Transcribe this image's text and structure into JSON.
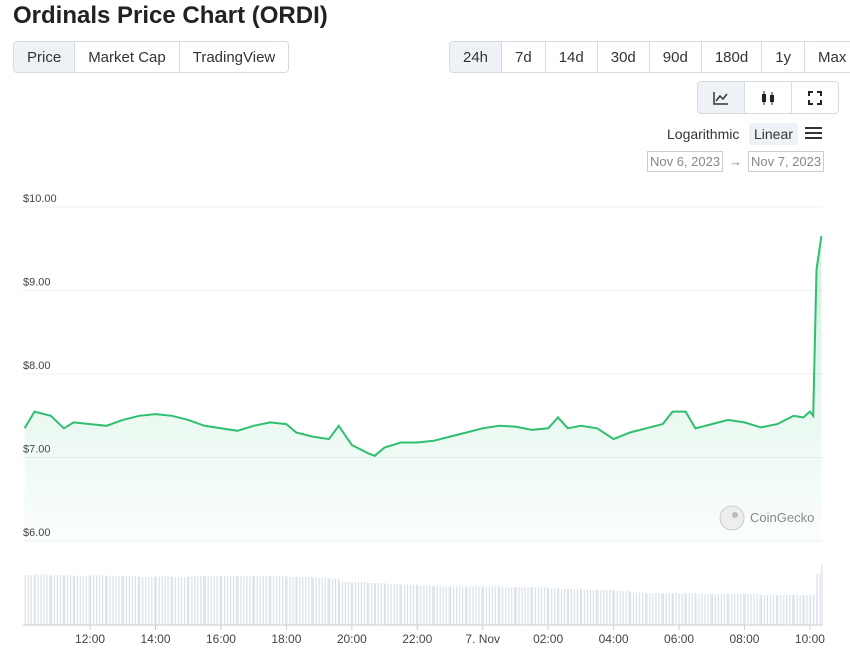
{
  "header": {
    "title": "Ordinals Price Chart (ORDI)"
  },
  "tabs": [
    "Price",
    "Market Cap",
    "TradingView"
  ],
  "ranges": [
    "24h",
    "7d",
    "14d",
    "30d",
    "90d",
    "180d",
    "1y",
    "Max"
  ],
  "scale_options": [
    "Logarithmic",
    "Linear"
  ],
  "date_range": {
    "from": "Nov 6, 2023",
    "separator": "→",
    "to": "Nov 7, 2023"
  },
  "watermark": "CoinGecko",
  "chart_data": {
    "type": "line",
    "color": "#2fbf71",
    "x": [
      10.0,
      10.3,
      10.8,
      11.2,
      11.5,
      12,
      12.5,
      13,
      13.5,
      14,
      14.5,
      15,
      15.5,
      16,
      16.5,
      17,
      17.5,
      18,
      18.3,
      18.8,
      19.3,
      19.6,
      20,
      20.5,
      20.7,
      21,
      21.5,
      22,
      22.5,
      23,
      23.5,
      24,
      24.5,
      25,
      25.5,
      26,
      26.3,
      26.6,
      27,
      27.5,
      28,
      28.5,
      29,
      29.5,
      29.8,
      30.2,
      30.5,
      31,
      31.5,
      32,
      32.5,
      33,
      33.5,
      33.8,
      34,
      34.1,
      34.2,
      34.35
    ],
    "values": [
      7.35,
      7.55,
      7.5,
      7.35,
      7.42,
      7.4,
      7.38,
      7.45,
      7.5,
      7.52,
      7.5,
      7.45,
      7.38,
      7.35,
      7.32,
      7.38,
      7.42,
      7.4,
      7.3,
      7.25,
      7.22,
      7.38,
      7.15,
      7.05,
      7.02,
      7.12,
      7.18,
      7.18,
      7.2,
      7.25,
      7.3,
      7.35,
      7.38,
      7.37,
      7.33,
      7.35,
      7.48,
      7.35,
      7.38,
      7.35,
      7.22,
      7.3,
      7.35,
      7.4,
      7.55,
      7.55,
      7.35,
      7.4,
      7.45,
      7.42,
      7.36,
      7.4,
      7.5,
      7.48,
      7.55,
      7.5,
      9.25,
      9.65
    ],
    "volume": [
      58,
      59,
      58,
      58,
      57,
      58,
      57,
      57,
      56,
      57,
      56,
      57,
      57,
      57,
      57,
      57,
      57,
      56,
      56,
      55,
      54,
      50,
      50,
      49,
      49,
      48,
      47,
      46,
      45,
      45,
      45,
      45,
      44,
      44,
      44,
      43,
      42,
      42,
      41,
      41,
      40,
      38,
      37,
      37,
      37,
      37,
      36,
      36,
      36,
      36,
      35,
      35,
      35,
      35,
      35,
      36,
      60,
      70
    ],
    "xlim": [
      9.95,
      34.4
    ],
    "xticks": [
      {
        "value": 12,
        "label": "12:00"
      },
      {
        "value": 14,
        "label": "14:00"
      },
      {
        "value": 16,
        "label": "16:00"
      },
      {
        "value": 18,
        "label": "18:00"
      },
      {
        "value": 20,
        "label": "20:00"
      },
      {
        "value": 22,
        "label": "22:00"
      },
      {
        "value": 24,
        "label": "7. Nov"
      },
      {
        "value": 26,
        "label": "02:00"
      },
      {
        "value": 28,
        "label": "04:00"
      },
      {
        "value": 30,
        "label": "06:00"
      },
      {
        "value": 32,
        "label": "08:00"
      },
      {
        "value": 34,
        "label": "10:00"
      }
    ],
    "ylim": [
      6,
      10
    ],
    "yticks": [
      {
        "value": 6,
        "label": "$6.00"
      },
      {
        "value": 7,
        "label": "$7.00"
      },
      {
        "value": 8,
        "label": "$8.00"
      },
      {
        "value": 9,
        "label": "$9.00"
      },
      {
        "value": 10,
        "label": "$10.00"
      }
    ],
    "grid": true
  }
}
